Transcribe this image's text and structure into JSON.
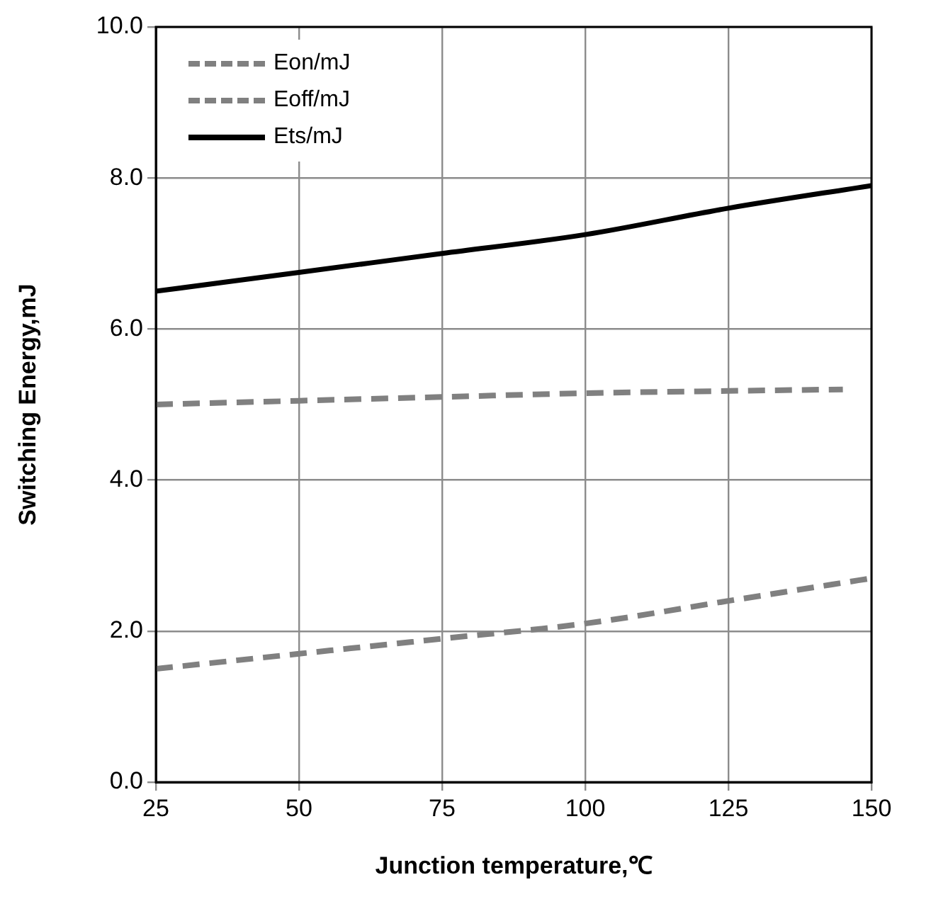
{
  "chart_data": {
    "type": "line",
    "xlabel": "Junction temperature,℃",
    "ylabel": "Switching Energy,mJ",
    "x": [
      25,
      50,
      75,
      100,
      125,
      150
    ],
    "series": [
      {
        "name": "Eon/mJ",
        "color": "#808080",
        "line_style": "dashed",
        "x": [
          25,
          50,
          75,
          100,
          125,
          145
        ],
        "values": [
          5.0,
          5.05,
          5.1,
          5.15,
          5.18,
          5.2
        ]
      },
      {
        "name": "Eoff/mJ",
        "color": "#808080",
        "line_style": "dashed",
        "values": [
          1.5,
          1.7,
          1.9,
          2.1,
          2.4,
          2.7
        ]
      },
      {
        "name": "Ets/mJ",
        "color": "#000000",
        "line_style": "solid",
        "values": [
          6.5,
          6.75,
          7.0,
          7.25,
          7.6,
          7.9
        ]
      }
    ],
    "xlim": [
      25,
      150
    ],
    "xticks": [
      25,
      50,
      75,
      100,
      125,
      150
    ],
    "ylim": [
      0,
      10
    ],
    "yticks": [
      {
        "value": 0,
        "label": "0.0"
      },
      {
        "value": 2,
        "label": "2.0"
      },
      {
        "value": 4,
        "label": "4.0"
      },
      {
        "value": 6,
        "label": "6.0"
      },
      {
        "value": 8,
        "label": "8.0"
      },
      {
        "value": 10,
        "label": "10.0"
      }
    ],
    "grid": true,
    "legend": "top left",
    "marker": "none"
  }
}
